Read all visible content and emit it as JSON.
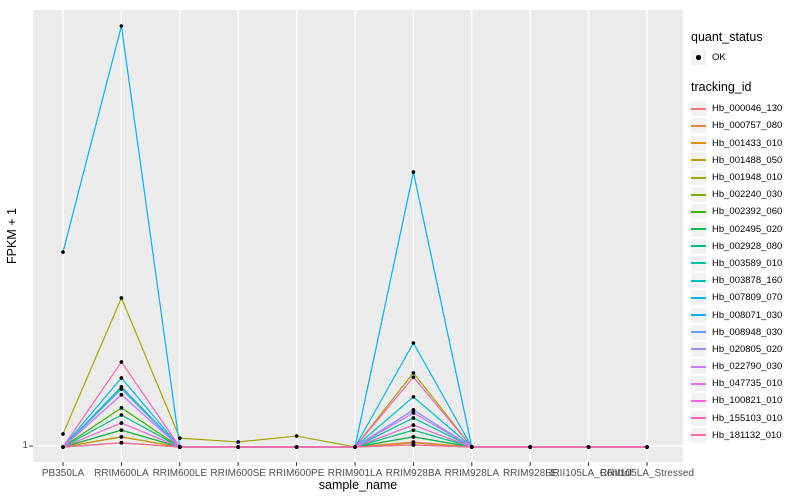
{
  "figure": {
    "x_axis_title": "sample_name",
    "y_axis_title": "FPKM + 1",
    "y_tick_label": "1",
    "panel_bg": "#EBEBEB",
    "grid_color": "#FFFFFF",
    "tick_color": "#333333",
    "tick_label_color": "#4D4D4D",
    "point_color": "#000000"
  },
  "legend": {
    "quant_status_title": "quant_status",
    "quant_status_ok_label": "OK",
    "tracking_id_title": "tracking_id"
  },
  "chart_data": {
    "type": "line",
    "title": "",
    "xlabel": "sample_name",
    "ylabel": "FPKM + 1",
    "y_tick_labels": [
      "1"
    ],
    "legend_position": "right",
    "grid": "gray panel with white vertical gridline per category and white baseline gridline at y=1",
    "marker": "small black point at every data point (quant_status = OK)",
    "value_units": "height above the y=1 baseline as a fraction of panel height; only the tick '1' is labeled on the y axis",
    "categories": [
      "PB350LA",
      "RRIM600LA",
      "RRIM600LE",
      "RRIM600SE",
      "RRIM600PE",
      "RRIM901LA",
      "RRIM928BA",
      "RRIM928LA",
      "RRIM928LE",
      "RRII105LA_Control",
      "RRII105LA_Stressed"
    ],
    "series": [
      {
        "name": "Hb_000046_130",
        "color": "#F8766D",
        "values": [
          0,
          0.024,
          0,
          0,
          0,
          0,
          0.012,
          0,
          0,
          0,
          0
        ]
      },
      {
        "name": "Hb_000757_080",
        "color": "#EA8331",
        "values": [
          0,
          0.04,
          0,
          0,
          0,
          0,
          0.024,
          0,
          0,
          0,
          0
        ]
      },
      {
        "name": "Hb_001433_010",
        "color": "#D89000",
        "values": [
          0,
          0.057,
          0,
          0,
          0,
          0,
          0.081,
          0,
          0,
          0,
          0
        ]
      },
      {
        "name": "Hb_001488_050",
        "color": "#C09B00",
        "values": [
          0,
          0.024,
          0,
          0,
          0,
          0,
          0.01,
          0,
          0,
          0,
          0
        ]
      },
      {
        "name": "Hb_001948_010",
        "color": "#A3A500",
        "values": [
          0.031,
          0.354,
          0.021,
          0.012,
          0.026,
          0,
          0.176,
          0,
          0,
          0,
          0
        ]
      },
      {
        "name": "Hb_002240_030",
        "color": "#7CAE00",
        "values": [
          0,
          0.01,
          0,
          0,
          0,
          0,
          0.005,
          0,
          0,
          0,
          0
        ]
      },
      {
        "name": "Hb_002392_060",
        "color": "#39B600",
        "values": [
          0,
          0.093,
          0,
          0,
          0,
          0,
          0.052,
          0,
          0,
          0,
          0
        ]
      },
      {
        "name": "Hb_002495_020",
        "color": "#00BB4E",
        "values": [
          0,
          0.04,
          0,
          0,
          0,
          0,
          0.024,
          0,
          0,
          0,
          0
        ]
      },
      {
        "name": "Hb_002928_080",
        "color": "#00BF7D",
        "values": [
          0,
          0.076,
          0,
          0,
          0,
          0,
          0.04,
          0,
          0,
          0,
          0
        ]
      },
      {
        "name": "Hb_003589_010",
        "color": "#00C1A3",
        "values": [
          0,
          0.143,
          0,
          0,
          0,
          0,
          0.069,
          0,
          0,
          0,
          0
        ]
      },
      {
        "name": "Hb_003878_160",
        "color": "#00BFC4",
        "values": [
          0,
          0.138,
          0,
          0,
          0,
          0,
          0.119,
          0,
          0,
          0,
          0
        ]
      },
      {
        "name": "Hb_007809_070",
        "color": "#00BAE0",
        "values": [
          0,
          0.164,
          0,
          0,
          0,
          0,
          0.247,
          0,
          0,
          0,
          0
        ]
      },
      {
        "name": "Hb_008071_030",
        "color": "#00B0F6",
        "values": [
          0.463,
          1.0,
          0,
          0,
          0,
          0,
          0.653,
          0,
          0,
          0,
          0
        ]
      },
      {
        "name": "Hb_008948_030",
        "color": "#619CFF",
        "values": [
          0,
          0.138,
          0,
          0,
          0,
          0,
          0.088,
          0,
          0,
          0,
          0
        ]
      },
      {
        "name": "Hb_020805_020",
        "color": "#9590FF",
        "values": [
          0,
          0.124,
          0,
          0,
          0,
          0,
          0.088,
          0,
          0,
          0,
          0
        ]
      },
      {
        "name": "Hb_022790_030",
        "color": "#C77CFF",
        "values": [
          0,
          0.124,
          0,
          0,
          0,
          0,
          0.081,
          0,
          0,
          0,
          0
        ]
      },
      {
        "name": "Hb_047735_010",
        "color": "#E76BF3",
        "values": [
          0,
          0.057,
          0,
          0,
          0,
          0,
          0.052,
          0,
          0,
          0,
          0
        ]
      },
      {
        "name": "Hb_100821_010",
        "color": "#FA62DB",
        "values": [
          0,
          0.01,
          0,
          0,
          0,
          0,
          0.005,
          0,
          0,
          0,
          0
        ]
      },
      {
        "name": "Hb_155103_010",
        "color": "#FF62BC",
        "values": [
          0,
          0.202,
          0,
          0,
          0,
          0,
          0.166,
          0,
          0,
          0,
          0
        ]
      },
      {
        "name": "Hb_181132_010",
        "color": "#FF6A98",
        "values": [
          0,
          0.01,
          0,
          0,
          0,
          0,
          0.005,
          0,
          0,
          0,
          0
        ]
      }
    ]
  }
}
